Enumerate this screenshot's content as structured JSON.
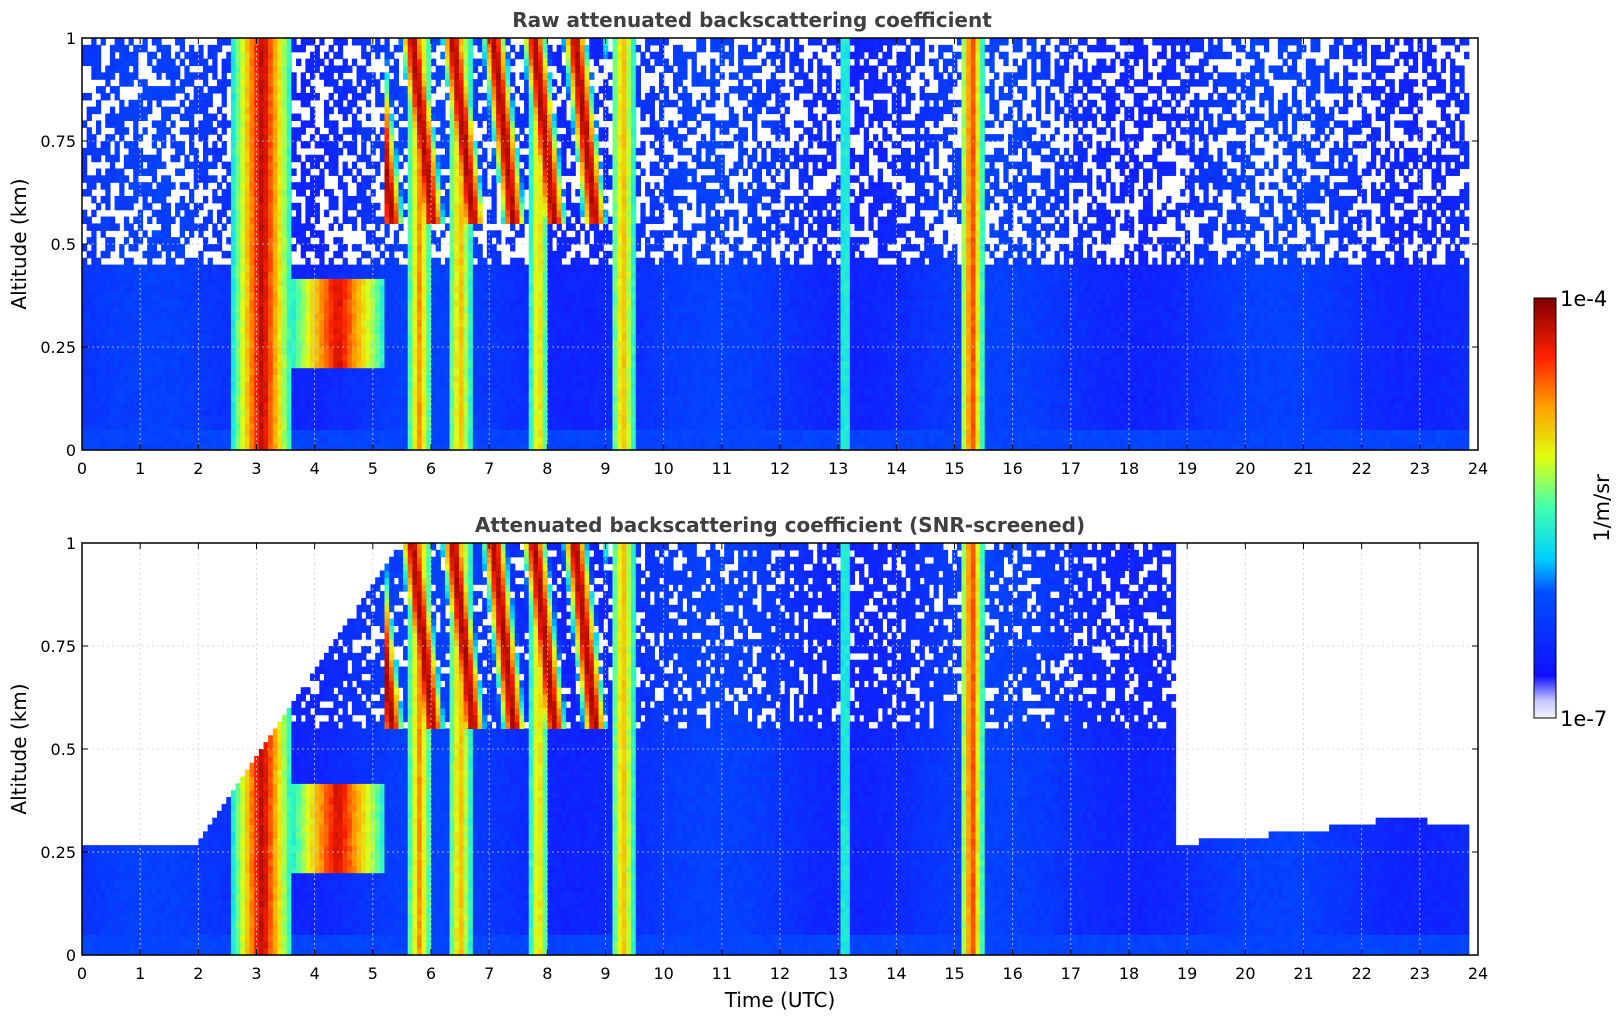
{
  "figure": {
    "colorbar": {
      "max_label": "1e-4",
      "min_label": "1e-7",
      "unit_label": "1/m/sr",
      "colormap": "jet",
      "scale": "log"
    }
  },
  "chart_data": [
    {
      "type": "heatmap",
      "title": "Raw attenuated backscattering coefficient",
      "xlabel": "",
      "ylabel": "Altitude (km)",
      "xlim": [
        0,
        24
      ],
      "ylim": [
        0,
        1
      ],
      "xticks": [
        "0",
        "1",
        "2",
        "3",
        "4",
        "5",
        "6",
        "7",
        "8",
        "9",
        "10",
        "11",
        "12",
        "13",
        "14",
        "15",
        "16",
        "17",
        "18",
        "19",
        "20",
        "21",
        "22",
        "23",
        "24"
      ],
      "yticks": [
        "0",
        "0.25",
        "0.5",
        "0.75",
        "1"
      ],
      "grid": true,
      "data_end_time": 23.8,
      "cloud_bands": [
        {
          "t0": 2.6,
          "t1": 3.6,
          "base": 0.0,
          "top": 1.0,
          "peak": 0.95
        },
        {
          "t0": 3.6,
          "t1": 5.2,
          "base": 0.2,
          "top": 0.42,
          "peak": 0.92
        },
        {
          "t0": 5.6,
          "t1": 6.0,
          "base": 0.0,
          "top": 1.0,
          "peak": 0.75
        },
        {
          "t0": 6.3,
          "t1": 6.7,
          "base": 0.0,
          "top": 1.0,
          "peak": 0.72
        },
        {
          "t0": 7.7,
          "t1": 8.0,
          "base": 0.0,
          "top": 1.0,
          "peak": 0.7
        },
        {
          "t0": 9.1,
          "t1": 9.5,
          "base": 0.0,
          "top": 1.0,
          "peak": 0.72
        },
        {
          "t0": 13.05,
          "t1": 13.2,
          "base": 0.0,
          "top": 1.0,
          "peak": 0.45
        },
        {
          "t0": 15.1,
          "t1": 15.5,
          "base": 0.0,
          "top": 1.0,
          "peak": 0.85
        }
      ],
      "high_cloud": {
        "t0": 5.2,
        "t1": 9.0,
        "base": 0.55,
        "top": 1.0,
        "peak": 0.95
      }
    },
    {
      "type": "heatmap",
      "title": "Attenuated backscattering coefficient (SNR-screened)",
      "xlabel": "Time (UTC)",
      "ylabel": "Altitude (km)",
      "xlim": [
        0,
        24
      ],
      "ylim": [
        0,
        1
      ],
      "xticks": [
        "0",
        "1",
        "2",
        "3",
        "4",
        "5",
        "6",
        "7",
        "8",
        "9",
        "10",
        "11",
        "12",
        "13",
        "14",
        "15",
        "16",
        "17",
        "18",
        "19",
        "20",
        "21",
        "22",
        "23",
        "24"
      ],
      "yticks": [
        "0",
        "0.25",
        "0.5",
        "0.75",
        "1"
      ],
      "grid": true,
      "data_end_time": 23.8,
      "screen_top_km": [
        {
          "t": 0.0,
          "top": 0.26
        },
        {
          "t": 1.9,
          "top": 0.26
        },
        {
          "t": 5.5,
          "top": 1.0
        },
        {
          "t": 18.8,
          "top": 1.0
        },
        {
          "t": 18.8,
          "top": 0.27
        },
        {
          "t": 21.0,
          "top": 0.3
        },
        {
          "t": 22.5,
          "top": 0.33
        },
        {
          "t": 23.8,
          "top": 0.32
        }
      ]
    }
  ]
}
